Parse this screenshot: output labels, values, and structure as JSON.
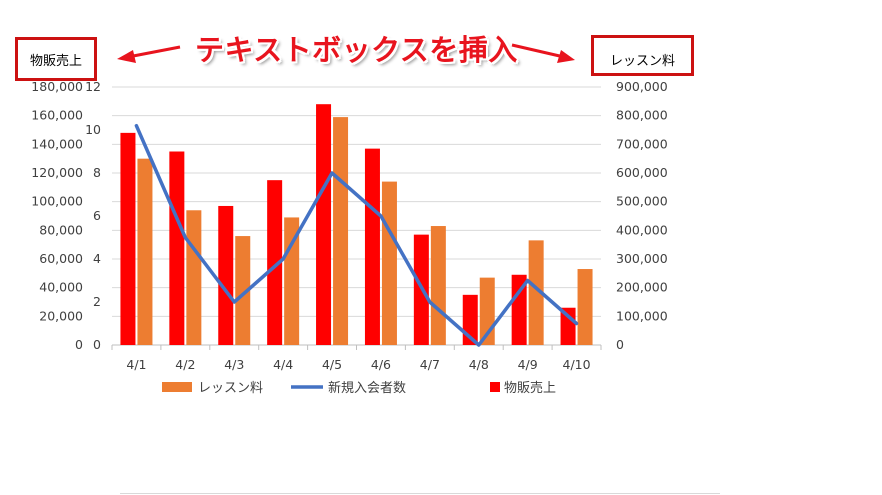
{
  "annotation": {
    "banner": "テキストボックスを挿入",
    "left_box": "物販売上",
    "right_box": "レッスン料"
  },
  "chart_data": {
    "type": "bar",
    "categories": [
      "4/1",
      "4/2",
      "4/3",
      "4/4",
      "4/5",
      "4/6",
      "4/7",
      "4/8",
      "4/9",
      "4/10"
    ],
    "series": [
      {
        "name": "物販売上",
        "kind": "bar",
        "axis": "left",
        "color": "#ff0000",
        "values": [
          148000,
          135000,
          97000,
          115000,
          168000,
          137000,
          77000,
          35000,
          49000,
          26000
        ]
      },
      {
        "name": "レッスン料",
        "kind": "bar",
        "axis": "right",
        "color": "#ed7d31",
        "values": [
          650000,
          470000,
          380000,
          445000,
          795000,
          570000,
          415000,
          235000,
          365000,
          265000
        ]
      },
      {
        "name": "新規入会者数",
        "kind": "line",
        "axis": "middle",
        "color": "#4472c4",
        "values": [
          10.2,
          5,
          2,
          4,
          8,
          6,
          2,
          0,
          3,
          1
        ]
      }
    ],
    "axes": {
      "left": {
        "min": 0,
        "max": 180000,
        "step": 20000,
        "tick_labels": [
          "0",
          "20,000",
          "40,000",
          "60,000",
          "80,000",
          "100,000",
          "120,000",
          "140,000",
          "160,000",
          "180,000"
        ]
      },
      "middle": {
        "min": 0,
        "max": 12,
        "step": 2,
        "tick_labels": [
          "0",
          "2",
          "4",
          "6",
          "8",
          "10",
          "12"
        ]
      },
      "right": {
        "min": 0,
        "max": 900000,
        "step": 100000,
        "tick_labels": [
          "0",
          "100,000",
          "200,000",
          "300,000",
          "400,000",
          "500,000",
          "600,000",
          "700,000",
          "800,000",
          "900,000"
        ]
      }
    },
    "grid": true,
    "legend": {
      "position": "bottom",
      "entries": [
        {
          "label": "レッスン料",
          "kind": "bar",
          "color": "#ed7d31"
        },
        {
          "label": "新規入会者数",
          "kind": "line",
          "color": "#4472c4"
        },
        {
          "label": "物販売上",
          "kind": "bar",
          "color": "#ff0000"
        }
      ]
    }
  }
}
